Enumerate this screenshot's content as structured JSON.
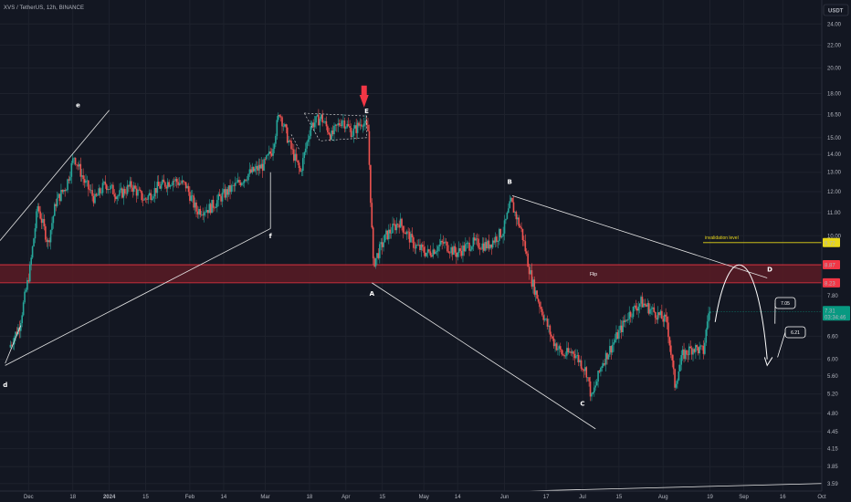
{
  "header": {
    "title": "XVS / TetherUS, 12h, BINANCE"
  },
  "axis": {
    "currency_label": "USDT"
  },
  "colors": {
    "background": "#131722",
    "up": "#26a69a",
    "down": "#ef5350",
    "zone_fill": "#5a1b24",
    "zone_border": "#f23645",
    "invalidation": "#e8d71a",
    "current_price": "#089981",
    "wave_lines": "#e6e6e6"
  },
  "chart_data": {
    "type": "candlestick",
    "title": "XVS / TetherUS, 12h, BINANCE",
    "y_scale": "log",
    "ylim": [
      3.48,
      26.5
    ],
    "y_ticks": [
      "24.00",
      "22.00",
      "20.00",
      "18.00",
      "16.50",
      "15.00",
      "14.00",
      "13.00",
      "12.00",
      "11.00",
      "10.00",
      "9.72",
      "8.87",
      "8.23",
      "7.80",
      "7.31",
      "6.60",
      "6.00",
      "5.60",
      "5.20",
      "4.80",
      "4.45",
      "4.15",
      "3.85",
      "3.59"
    ],
    "x_tick_labels": [
      "Dec",
      "18",
      "2024",
      "15",
      "Feb",
      "14",
      "Mar",
      "18",
      "Apr",
      "15",
      "May",
      "14",
      "Jun",
      "17",
      "Jul",
      "15",
      "Aug",
      "19",
      "Sep",
      "16",
      "Oct"
    ],
    "price_path": [
      {
        "date": "2023-11-24",
        "price": 6.3
      },
      {
        "date": "2023-11-28",
        "price": 6.9
      },
      {
        "date": "2023-12-02",
        "price": 8.7
      },
      {
        "date": "2023-12-05",
        "price": 11.3
      },
      {
        "date": "2023-12-09",
        "price": 9.7
      },
      {
        "date": "2023-12-12",
        "price": 11.5
      },
      {
        "date": "2023-12-16",
        "price": 12.3
      },
      {
        "date": "2023-12-19",
        "price": 13.9
      },
      {
        "date": "2023-12-23",
        "price": 12.5
      },
      {
        "date": "2023-12-27",
        "price": 11.6
      },
      {
        "date": "2023-12-31",
        "price": 12.4
      },
      {
        "date": "2024-01-05",
        "price": 11.8
      },
      {
        "date": "2024-01-10",
        "price": 12.3
      },
      {
        "date": "2024-01-15",
        "price": 11.6
      },
      {
        "date": "2024-01-20",
        "price": 12.2
      },
      {
        "date": "2024-01-26",
        "price": 12.6
      },
      {
        "date": "2024-01-31",
        "price": 12.3
      },
      {
        "date": "2024-02-04",
        "price": 11.1
      },
      {
        "date": "2024-02-09",
        "price": 11.2
      },
      {
        "date": "2024-02-14",
        "price": 11.8
      },
      {
        "date": "2024-02-19",
        "price": 12.3
      },
      {
        "date": "2024-02-24",
        "price": 12.9
      },
      {
        "date": "2024-03-01",
        "price": 13.4
      },
      {
        "date": "2024-03-04",
        "price": 14.2
      },
      {
        "date": "2024-03-07",
        "price": 16.7
      },
      {
        "date": "2024-03-11",
        "price": 14.5
      },
      {
        "date": "2024-03-15",
        "price": 13.0
      },
      {
        "date": "2024-03-19",
        "price": 15.8
      },
      {
        "date": "2024-03-23",
        "price": 16.3
      },
      {
        "date": "2024-03-27",
        "price": 15.1
      },
      {
        "date": "2024-03-31",
        "price": 16.2
      },
      {
        "date": "2024-04-04",
        "price": 15.3
      },
      {
        "date": "2024-04-08",
        "price": 16.1
      },
      {
        "date": "2024-04-10",
        "price": 15.4
      },
      {
        "date": "2024-04-12",
        "price": 8.9
      },
      {
        "date": "2024-04-17",
        "price": 10.0
      },
      {
        "date": "2024-04-22",
        "price": 10.6
      },
      {
        "date": "2024-04-28",
        "price": 9.6
      },
      {
        "date": "2024-05-03",
        "price": 9.3
      },
      {
        "date": "2024-05-09",
        "price": 9.7
      },
      {
        "date": "2024-05-14",
        "price": 9.3
      },
      {
        "date": "2024-05-20",
        "price": 9.7
      },
      {
        "date": "2024-05-26",
        "price": 9.6
      },
      {
        "date": "2024-06-01",
        "price": 10.2
      },
      {
        "date": "2024-06-04",
        "price": 11.5
      },
      {
        "date": "2024-06-08",
        "price": 10.2
      },
      {
        "date": "2024-06-12",
        "price": 8.3
      },
      {
        "date": "2024-06-16",
        "price": 7.3
      },
      {
        "date": "2024-06-20",
        "price": 6.5
      },
      {
        "date": "2024-06-24",
        "price": 6.1
      },
      {
        "date": "2024-06-28",
        "price": 6.2
      },
      {
        "date": "2024-07-03",
        "price": 5.7
      },
      {
        "date": "2024-07-05",
        "price": 5.1
      },
      {
        "date": "2024-07-09",
        "price": 5.9
      },
      {
        "date": "2024-07-14",
        "price": 6.5
      },
      {
        "date": "2024-07-19",
        "price": 7.2
      },
      {
        "date": "2024-07-24",
        "price": 7.6
      },
      {
        "date": "2024-07-29",
        "price": 7.3
      },
      {
        "date": "2024-08-03",
        "price": 7.0
      },
      {
        "date": "2024-08-06",
        "price": 5.4
      },
      {
        "date": "2024-08-09",
        "price": 6.1
      },
      {
        "date": "2024-08-13",
        "price": 6.3
      },
      {
        "date": "2024-08-17",
        "price": 6.2
      },
      {
        "date": "2024-08-19",
        "price": 7.31
      }
    ],
    "current_price": {
      "value": "7.31",
      "countdown": "03:34:46"
    },
    "zone": {
      "label": "Flip",
      "top": 8.87,
      "bottom": 8.23,
      "top_label": "8.87",
      "bottom_label": "8.23"
    },
    "invalidation": {
      "label": "invalidation level",
      "value": 9.72,
      "value_label": "9.72"
    },
    "wave_labels": [
      "e",
      "f",
      "d",
      "A",
      "B",
      "C",
      "D",
      "E"
    ],
    "targets": [
      {
        "label": "7.05",
        "value": 7.05
      },
      {
        "label": "6.21",
        "value": 6.21
      }
    ],
    "grid": true
  }
}
